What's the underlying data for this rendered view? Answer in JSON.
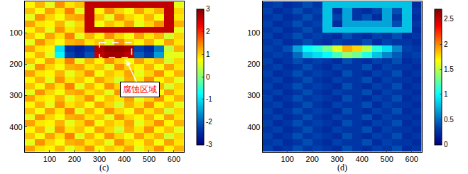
{
  "chart_data": [
    {
      "type": "heatmap",
      "label": "(c)",
      "x": [
        20,
        60,
        100,
        140,
        180,
        220,
        260,
        300,
        340,
        380,
        420,
        460,
        500,
        540,
        580,
        620
      ],
      "y": [
        10,
        30,
        50,
        70,
        90,
        110,
        130,
        150,
        170,
        190,
        210,
        230,
        250,
        270,
        290,
        310,
        330,
        350,
        370,
        390,
        410,
        430,
        450,
        470
      ],
      "z": [
        [
          0.8,
          1.2,
          0.6,
          1.4,
          0.9,
          1.1,
          2.6,
          2.6,
          2.6,
          2.6,
          2.6,
          2.6,
          2.6,
          2.6,
          2.6,
          0.6
        ],
        [
          1.1,
          0.7,
          1.3,
          0.9,
          1.5,
          0.6,
          2.6,
          0.8,
          1.4,
          1.0,
          0.7,
          1.3,
          0.9,
          1.2,
          2.6,
          1.0
        ],
        [
          0.6,
          1.4,
          1.0,
          0.7,
          1.2,
          1.3,
          2.6,
          1.1,
          0.6,
          1.4,
          1.0,
          0.8,
          1.2,
          0.7,
          2.6,
          0.9
        ],
        [
          1.3,
          0.9,
          0.8,
          1.2,
          0.6,
          1.0,
          2.6,
          0.7,
          1.1,
          0.9,
          1.3,
          0.6,
          1.0,
          1.4,
          2.6,
          1.2
        ],
        [
          0.8,
          1.2,
          0.6,
          1.4,
          0.9,
          1.1,
          2.6,
          2.6,
          2.6,
          2.6,
          2.6,
          2.6,
          2.6,
          2.6,
          2.6,
          0.6
        ],
        [
          1.1,
          0.7,
          1.3,
          0.9,
          1.5,
          0.6,
          1.2,
          0.8,
          1.4,
          1.0,
          0.7,
          1.3,
          0.9,
          1.2,
          0.5,
          1.0
        ],
        [
          0.6,
          1.4,
          1.0,
          0.7,
          1.2,
          1.3,
          0.9,
          1.1,
          0.6,
          1.4,
          1.0,
          0.8,
          1.2,
          0.7,
          1.3,
          0.9
        ],
        [
          1.3,
          0.9,
          0.8,
          -1.0,
          -2.4,
          -2.6,
          -2.3,
          2.7,
          2.9,
          2.9,
          2.8,
          -2.2,
          -2.5,
          -1.8,
          0.4,
          1.2
        ],
        [
          0.8,
          1.2,
          0.6,
          -0.8,
          -2.2,
          -2.5,
          -2.1,
          2.6,
          2.8,
          2.8,
          2.6,
          -2.0,
          -2.3,
          -1.5,
          0.6,
          0.6
        ],
        [
          1.1,
          0.7,
          1.3,
          0.9,
          1.5,
          0.6,
          1.2,
          0.8,
          1.4,
          1.0,
          0.7,
          1.3,
          0.9,
          1.2,
          0.5,
          1.0
        ],
        [
          0.6,
          1.4,
          1.0,
          0.7,
          1.2,
          1.3,
          0.9,
          1.1,
          0.6,
          1.4,
          1.0,
          0.8,
          1.2,
          0.7,
          1.3,
          0.9
        ],
        [
          1.3,
          0.9,
          0.8,
          1.2,
          0.6,
          1.0,
          1.4,
          0.7,
          1.1,
          0.9,
          1.3,
          0.6,
          1.0,
          1.4,
          0.8,
          1.2
        ],
        [
          0.8,
          1.2,
          0.6,
          1.4,
          0.9,
          1.1,
          0.7,
          1.3,
          1.0,
          0.5,
          1.2,
          0.9,
          1.4,
          0.8,
          1.1,
          0.6
        ],
        [
          1.1,
          0.7,
          1.3,
          0.9,
          1.5,
          0.6,
          1.2,
          0.8,
          1.4,
          1.0,
          0.7,
          1.3,
          0.9,
          1.2,
          0.5,
          1.0
        ],
        [
          0.6,
          1.4,
          1.0,
          0.7,
          1.2,
          1.3,
          0.9,
          1.1,
          0.6,
          1.4,
          1.0,
          0.8,
          1.2,
          0.7,
          1.3,
          0.9
        ],
        [
          1.3,
          0.9,
          0.8,
          1.2,
          0.6,
          1.0,
          1.4,
          0.7,
          1.1,
          0.9,
          1.3,
          0.6,
          1.0,
          1.4,
          0.8,
          1.2
        ],
        [
          0.8,
          1.2,
          0.6,
          1.4,
          0.9,
          1.1,
          0.7,
          1.3,
          1.0,
          0.5,
          1.2,
          0.9,
          1.4,
          0.8,
          1.1,
          0.6
        ],
        [
          1.1,
          0.7,
          1.3,
          0.9,
          1.5,
          0.6,
          1.2,
          0.8,
          1.4,
          1.0,
          0.7,
          1.3,
          0.9,
          1.2,
          0.5,
          1.0
        ],
        [
          0.6,
          1.4,
          1.0,
          0.7,
          1.2,
          1.3,
          0.9,
          1.1,
          0.6,
          1.4,
          1.0,
          0.8,
          1.2,
          0.7,
          1.3,
          0.9
        ],
        [
          1.3,
          0.9,
          0.8,
          1.2,
          0.6,
          1.0,
          1.4,
          0.7,
          1.1,
          0.9,
          1.3,
          0.6,
          1.0,
          1.4,
          0.8,
          1.2
        ],
        [
          0.8,
          1.2,
          0.6,
          1.4,
          0.9,
          1.1,
          0.7,
          1.3,
          1.0,
          0.5,
          1.2,
          0.9,
          1.4,
          0.8,
          1.1,
          0.6
        ],
        [
          1.1,
          0.7,
          1.3,
          0.9,
          1.5,
          0.6,
          1.2,
          0.8,
          1.4,
          1.0,
          0.7,
          1.3,
          0.9,
          1.2,
          0.5,
          1.0
        ],
        [
          0.6,
          1.4,
          1.0,
          0.7,
          1.2,
          1.3,
          0.9,
          1.1,
          0.6,
          1.4,
          1.0,
          0.8,
          1.2,
          0.7,
          1.3,
          0.9
        ],
        [
          1.3,
          0.9,
          0.8,
          1.2,
          0.6,
          1.0,
          1.4,
          0.7,
          1.1,
          0.9,
          1.3,
          0.6,
          1.0,
          1.4,
          0.8,
          1.2
        ]
      ],
      "xlim": [
        0,
        640
      ],
      "ylim": [
        480,
        0
      ],
      "xticks": [
        100,
        200,
        300,
        400,
        500,
        600
      ],
      "yticks": [
        100,
        200,
        300,
        400
      ],
      "colorbar": {
        "range": [
          -3,
          3
        ],
        "ticks": [
          -3,
          -2,
          -1,
          0,
          1,
          2,
          3
        ]
      },
      "box": {
        "x": [
          300,
          430
        ],
        "y": [
          130,
          178
        ]
      },
      "annotation": {
        "text": "腐蚀区域",
        "x": 409,
        "y": 187,
        "text_x": 463,
        "text_y": 280
      }
    },
    {
      "type": "heatmap",
      "label": "(d)",
      "x": [
        20,
        60,
        100,
        140,
        180,
        220,
        260,
        300,
        340,
        380,
        420,
        460,
        500,
        540,
        580,
        620
      ],
      "y": [
        10,
        30,
        50,
        70,
        90,
        110,
        130,
        150,
        170,
        190,
        210,
        230,
        250,
        270,
        290,
        310,
        330,
        350,
        370,
        390,
        410,
        430,
        450,
        470
      ],
      "z": [
        [
          0.3,
          0.35,
          0.25,
          0.3,
          0.4,
          0.3,
          0.8,
          0.8,
          0.8,
          0.8,
          0.8,
          0.8,
          0.8,
          0.8,
          0.8,
          0.25
        ],
        [
          0.35,
          0.25,
          0.3,
          0.4,
          0.3,
          0.35,
          0.8,
          0.25,
          0.7,
          0.3,
          0.25,
          0.35,
          0.7,
          0.4,
          0.8,
          0.3
        ],
        [
          0.3,
          0.35,
          0.25,
          0.3,
          0.4,
          0.3,
          0.8,
          0.35,
          0.7,
          0.3,
          0.4,
          0.25,
          0.7,
          0.3,
          0.8,
          0.25
        ],
        [
          0.35,
          0.25,
          0.3,
          0.4,
          0.3,
          0.35,
          0.8,
          0.25,
          0.7,
          0.7,
          0.7,
          0.7,
          0.7,
          0.4,
          0.8,
          0.3
        ],
        [
          0.3,
          0.35,
          0.25,
          0.3,
          0.4,
          0.3,
          0.8,
          0.8,
          0.8,
          0.8,
          0.8,
          0.8,
          0.8,
          0.8,
          0.8,
          0.25
        ],
        [
          0.35,
          0.25,
          0.3,
          0.4,
          0.3,
          0.35,
          0.3,
          0.25,
          0.4,
          0.3,
          0.25,
          0.35,
          0.3,
          0.4,
          0.25,
          0.3
        ],
        [
          0.3,
          0.35,
          0.25,
          0.3,
          0.4,
          0.3,
          0.25,
          0.35,
          0.3,
          0.3,
          0.4,
          0.25,
          0.35,
          0.3,
          0.3,
          0.25
        ],
        [
          0.35,
          0.3,
          0.4,
          0.7,
          1.0,
          1.1,
          1.3,
          1.6,
          1.9,
          1.8,
          1.5,
          1.1,
          0.9,
          0.6,
          0.35,
          0.3
        ],
        [
          0.3,
          0.35,
          0.3,
          0.5,
          0.8,
          0.9,
          1.0,
          1.2,
          1.4,
          1.3,
          1.1,
          0.8,
          0.6,
          0.45,
          0.3,
          0.35
        ],
        [
          0.35,
          0.25,
          0.3,
          0.4,
          0.3,
          0.35,
          0.3,
          0.25,
          0.4,
          0.3,
          0.25,
          0.35,
          0.3,
          0.4,
          0.25,
          0.3
        ],
        [
          0.3,
          0.35,
          0.25,
          0.3,
          0.4,
          0.3,
          0.25,
          0.35,
          0.3,
          0.3,
          0.4,
          0.25,
          0.35,
          0.3,
          0.3,
          0.25
        ],
        [
          0.35,
          0.25,
          0.3,
          0.4,
          0.3,
          0.35,
          0.3,
          0.25,
          0.4,
          0.3,
          0.25,
          0.35,
          0.3,
          0.4,
          0.25,
          0.3
        ],
        [
          0.3,
          0.35,
          0.25,
          0.3,
          0.4,
          0.3,
          0.25,
          0.35,
          0.3,
          0.3,
          0.4,
          0.25,
          0.35,
          0.3,
          0.3,
          0.25
        ],
        [
          0.35,
          0.25,
          0.3,
          0.4,
          0.3,
          0.35,
          0.3,
          0.25,
          0.4,
          0.3,
          0.25,
          0.35,
          0.3,
          0.4,
          0.25,
          0.3
        ],
        [
          0.3,
          0.35,
          0.25,
          0.3,
          0.4,
          0.3,
          0.25,
          0.35,
          0.3,
          0.3,
          0.4,
          0.25,
          0.35,
          0.3,
          0.3,
          0.25
        ],
        [
          0.35,
          0.25,
          0.3,
          0.4,
          0.3,
          0.35,
          0.3,
          0.25,
          0.4,
          0.3,
          0.25,
          0.35,
          0.3,
          0.4,
          0.25,
          0.3
        ],
        [
          0.3,
          0.35,
          0.25,
          0.3,
          0.4,
          0.3,
          0.25,
          0.35,
          0.3,
          0.3,
          0.4,
          0.25,
          0.35,
          0.3,
          0.3,
          0.25
        ],
        [
          0.35,
          0.25,
          0.3,
          0.4,
          0.3,
          0.35,
          0.3,
          0.25,
          0.4,
          0.3,
          0.25,
          0.35,
          0.3,
          0.4,
          0.25,
          0.3
        ],
        [
          0.3,
          0.35,
          0.25,
          0.3,
          0.4,
          0.3,
          0.25,
          0.35,
          0.3,
          0.3,
          0.4,
          0.25,
          0.35,
          0.3,
          0.3,
          0.25
        ],
        [
          0.35,
          0.25,
          0.3,
          0.4,
          0.3,
          0.35,
          0.3,
          0.25,
          0.4,
          0.3,
          0.25,
          0.35,
          0.3,
          0.4,
          0.25,
          0.3
        ],
        [
          0.3,
          0.35,
          0.25,
          0.3,
          0.4,
          0.3,
          0.25,
          0.35,
          0.3,
          0.3,
          0.4,
          0.25,
          0.35,
          0.3,
          0.3,
          0.25
        ],
        [
          0.35,
          0.25,
          0.3,
          0.4,
          0.3,
          0.35,
          0.3,
          0.25,
          0.4,
          0.3,
          0.25,
          0.35,
          0.3,
          0.4,
          0.25,
          0.3
        ],
        [
          0.3,
          0.35,
          0.25,
          0.3,
          0.4,
          0.3,
          0.25,
          0.35,
          0.3,
          0.3,
          0.4,
          0.25,
          0.35,
          0.3,
          0.3,
          0.25
        ],
        [
          0.35,
          0.25,
          0.3,
          0.4,
          0.3,
          0.35,
          0.3,
          0.25,
          0.4,
          0.3,
          0.25,
          0.35,
          0.3,
          0.4,
          0.25,
          0.3
        ]
      ],
      "xlim": [
        0,
        640
      ],
      "ylim": [
        480,
        0
      ],
      "xticks": [
        100,
        200,
        300,
        400,
        500,
        600
      ],
      "yticks": [
        100,
        200,
        300,
        400
      ],
      "colorbar": {
        "range": [
          0,
          2.7
        ],
        "ticks": [
          0,
          0.5,
          1,
          1.5,
          2,
          2.5
        ]
      }
    }
  ]
}
